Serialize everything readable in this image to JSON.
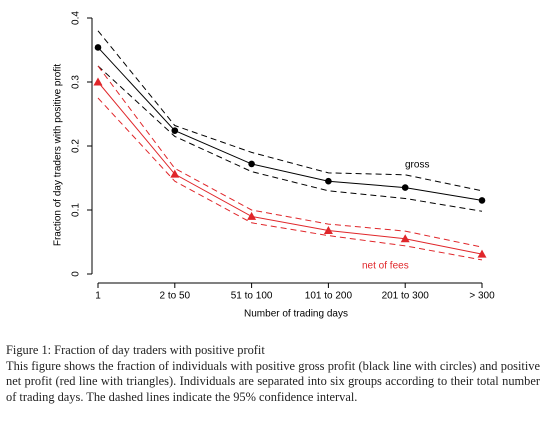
{
  "chart_data": {
    "type": "line",
    "categories": [
      "1",
      "2 to 50",
      "51 to 100",
      "101 to 200",
      "201 to 300",
      "> 300"
    ],
    "xlabel": "Number of trading days",
    "ylabel": "Fraction of day traders with positive profit",
    "ylim": [
      0,
      0.4
    ],
    "yticks": [
      0,
      0.1,
      0.2,
      0.3,
      0.4
    ],
    "series": [
      {
        "name": "gross",
        "color": "#000000",
        "marker": "circle",
        "values": [
          0.354,
          0.224,
          0.172,
          0.145,
          0.135,
          0.115
        ],
        "upper": [
          0.38,
          0.232,
          0.19,
          0.158,
          0.155,
          0.13
        ],
        "lower": [
          0.325,
          0.215,
          0.16,
          0.13,
          0.118,
          0.098
        ]
      },
      {
        "name": "net of fees",
        "color": "#e0262a",
        "marker": "triangle",
        "values": [
          0.3,
          0.156,
          0.09,
          0.068,
          0.055,
          0.031
        ],
        "upper": [
          0.325,
          0.165,
          0.1,
          0.078,
          0.067,
          0.042
        ],
        "lower": [
          0.275,
          0.145,
          0.08,
          0.06,
          0.044,
          0.022
        ]
      }
    ]
  },
  "caption": {
    "title": "Figure 1: Fraction of day traders with positive profit",
    "text": "This figure shows the fraction of individuals with positive gross profit (black line with circles) and positive net profit (red line with triangles). Individuals are separated into six groups according to their total number of trading days. The dashed lines indicate the 95% confidence interval."
  }
}
